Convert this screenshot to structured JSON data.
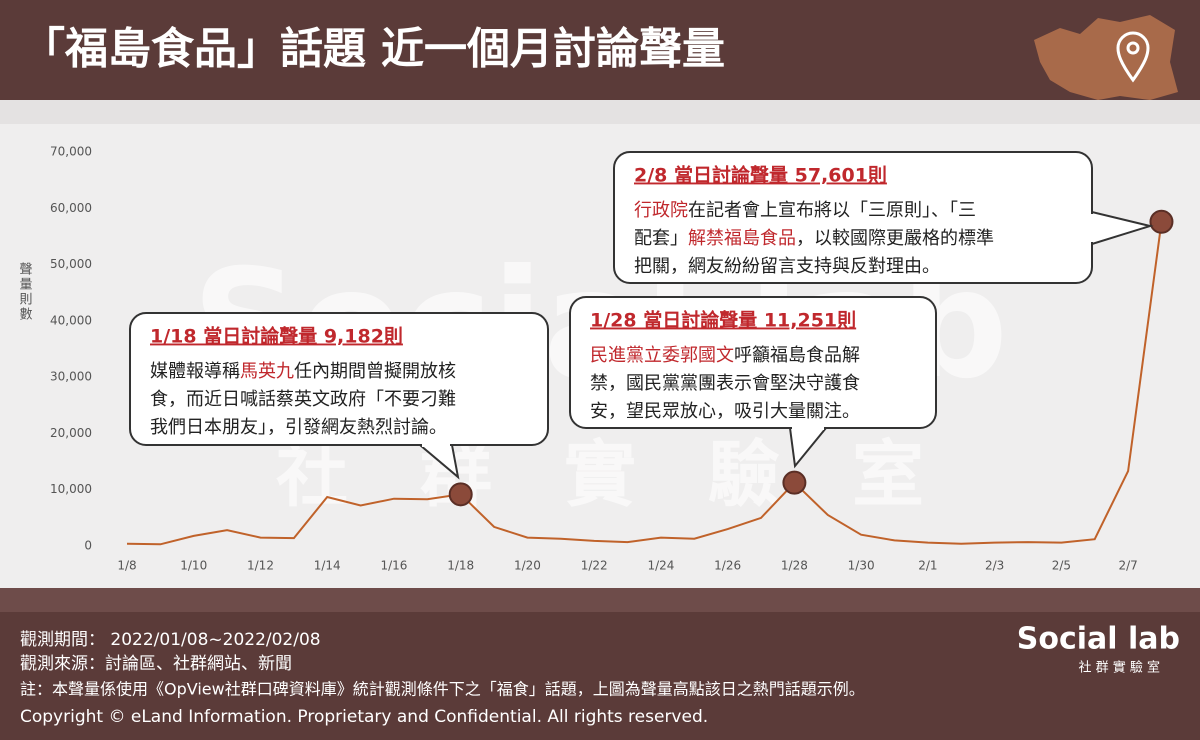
{
  "chart_data": {
    "type": "line",
    "title": "「福島食品」話題 近一個月討論聲量",
    "y_label": "聲量則數",
    "categories": [
      "1/8",
      null,
      "1/10",
      null,
      "1/12",
      null,
      "1/14",
      null,
      "1/16",
      null,
      "1/18",
      null,
      "1/20",
      null,
      "1/22",
      null,
      "1/24",
      null,
      "1/26",
      null,
      "1/28",
      null,
      "1/30",
      null,
      "2/1",
      null,
      "2/3",
      null,
      "2/5",
      null,
      "2/7",
      null
    ],
    "values": [
      400,
      300,
      1800,
      2800,
      1500,
      1400,
      8700,
      7200,
      8400,
      8300,
      9182,
      3400,
      1500,
      1300,
      900,
      700,
      1500,
      1300,
      3000,
      5000,
      11251,
      5500,
      2000,
      1000,
      600,
      400,
      600,
      700,
      600,
      1200,
      13300,
      57601
    ],
    "color": "#c0622a",
    "ylim": [
      0,
      70000
    ],
    "yticks": [
      0,
      {
        "value": 10000,
        "label": "10,000"
      },
      {
        "value": 20000,
        "label": "20,000"
      },
      {
        "value": 30000,
        "label": "30,000"
      },
      {
        "value": 40000,
        "label": "40,000"
      },
      {
        "value": 50000,
        "label": "50,000"
      },
      {
        "value": 60000,
        "label": "60,000"
      },
      {
        "value": 70000,
        "label": "70,000"
      }
    ],
    "grid": false,
    "annotations": [
      {
        "title": "1/18 當日討論聲量 9,182則",
        "lines": [
          [
            {
              "text": "媒體報導稱"
            },
            {
              "text": "馬英九",
              "color": "#c0282d"
            },
            {
              "text": "任內期間曾擬開放核"
            }
          ],
          [
            {
              "text": "食，而近日喊話蔡英文政府「不要刁難"
            }
          ],
          [
            {
              "text": "我們日本朋友」，引發網友熱烈討論。"
            }
          ]
        ]
      },
      {
        "title": "1/28 當日討論聲量 11,251則",
        "lines": [
          [
            {
              "text": "民進黨立委郭國文",
              "color": "#c0282d"
            },
            {
              "text": "呼籲福島食品解"
            }
          ],
          [
            {
              "text": "禁，國民黨黨團表示會堅決守護食"
            }
          ],
          [
            {
              "text": "安，望民眾放心，吸引大量關注。"
            }
          ]
        ]
      },
      {
        "title": "2/8 當日討論聲量 57,601則",
        "lines": [
          [
            {
              "text": "行政院",
              "color": "#c0282d"
            },
            {
              "text": "在記者會上宣布將以「三原則」、「三"
            }
          ],
          [
            {
              "text": "配套」"
            },
            {
              "text": "解禁福島食品",
              "color": "#c0282d"
            },
            {
              "text": "，以較國際更嚴格的標準"
            }
          ],
          [
            {
              "text": "把關，網友紛紛留言支持與反對理由。"
            }
          ]
        ]
      }
    ]
  },
  "watermark": {
    "name": "Social lab",
    "subtitle": "社　群　實　驗　室"
  },
  "footer": {
    "notes": [
      "觀測期間：  2022/01/08~2022/02/08",
      "觀測來源：討論區、社群網站、新聞",
      "註：本聲量係使用《OpView社群口碑資料庫》統計觀測條件下之「福食」話題，上圖為聲量高點該日之熱門話題示例。"
    ],
    "copyright": "Copyright © eLand Information. Proprietary and Confidential. All rights reserved.",
    "logo": "Social lab",
    "logo_subtitle": "社 群 實 驗 室"
  }
}
